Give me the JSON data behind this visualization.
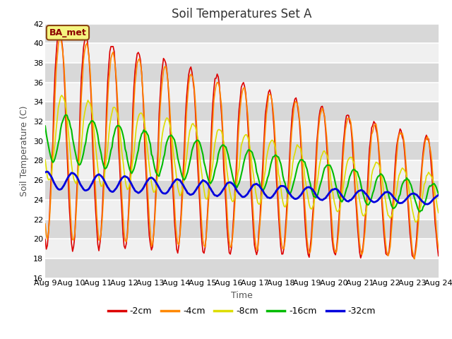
{
  "title": "Soil Temperatures Set A",
  "xlabel": "Time",
  "ylabel": "Soil Temperature (C)",
  "ylim": [
    16,
    42
  ],
  "yticks": [
    16,
    18,
    20,
    22,
    24,
    26,
    28,
    30,
    32,
    34,
    36,
    38,
    40,
    42
  ],
  "xtick_labels": [
    "Aug 9",
    "Aug 10",
    "Aug 11",
    "Aug 12",
    "Aug 13",
    "Aug 14",
    "Aug 15",
    "Aug 16",
    "Aug 17",
    "Aug 18",
    "Aug 19",
    "Aug 20",
    "Aug 21",
    "Aug 22",
    "Aug 23",
    "Aug 24"
  ],
  "annotation": "BA_met",
  "fig_bg_color": "#ffffff",
  "plot_bg_color": "#f0f0f0",
  "stripe_color": "#e0e0e0",
  "line_colors": [
    "#dd0000",
    "#ff8800",
    "#dddd00",
    "#00bb00",
    "#0000dd"
  ],
  "line_labels": [
    "-2cm",
    "-4cm",
    "-8cm",
    "-16cm",
    "-32cm"
  ],
  "line_widths": [
    1.2,
    1.2,
    1.2,
    1.5,
    2.0
  ],
  "days": 15,
  "title_fontsize": 12,
  "label_fontsize": 9,
  "tick_fontsize": 8,
  "legend_fontsize": 9
}
